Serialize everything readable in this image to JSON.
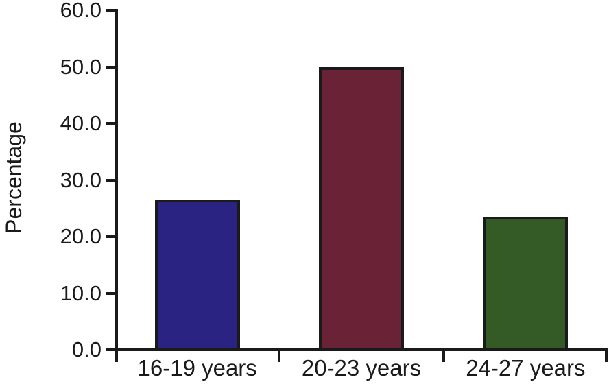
{
  "chart_data": {
    "type": "bar",
    "title": "",
    "xlabel": "",
    "ylabel": "Percentage",
    "categories": [
      "16-19 years",
      "20-23 years",
      "24-27 years"
    ],
    "values": [
      26.5,
      50.0,
      23.5
    ],
    "bar_colors": [
      "#2b2382",
      "#6a2336",
      "#345a26"
    ],
    "bar_border_color": "#1a1a1a",
    "axis_color": "#1a1a1a",
    "background": "#ffffff",
    "ylim": [
      0,
      60
    ],
    "ytick_interval": 10,
    "ytick_labels": [
      "0.0",
      "10.0",
      "20.0",
      "30.0",
      "40.0",
      "50.0",
      "60.0"
    ],
    "grid": false,
    "legend": null
  }
}
